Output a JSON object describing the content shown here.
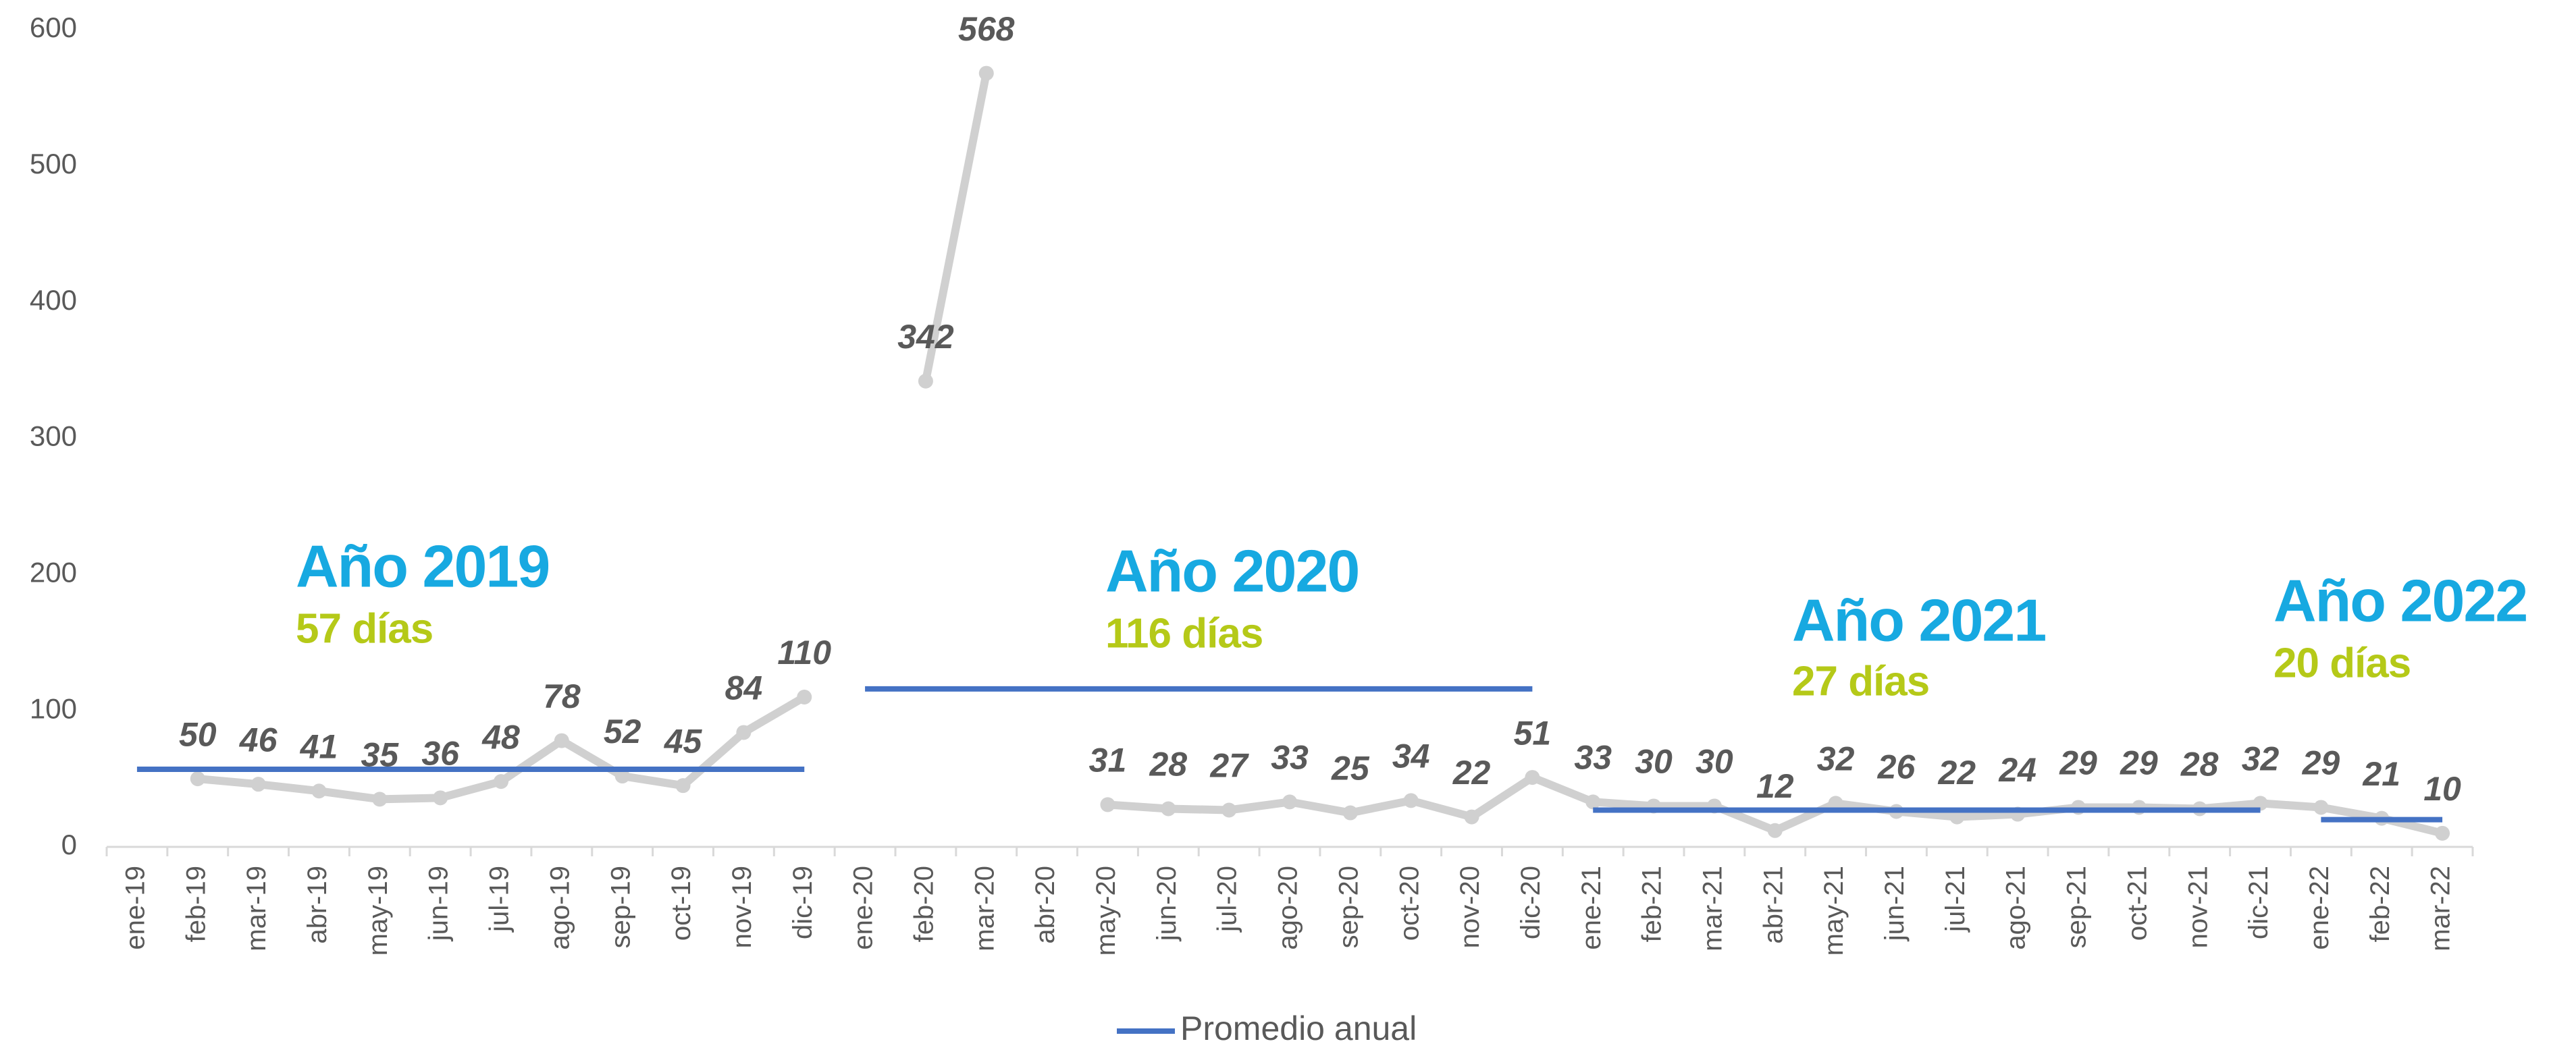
{
  "chart_data": {
    "type": "line",
    "categories": [
      "ene-19",
      "feb-19",
      "mar-19",
      "abr-19",
      "may-19",
      "jun-19",
      "jul-19",
      "ago-19",
      "sep-19",
      "oct-19",
      "nov-19",
      "dic-19",
      "ene-20",
      "feb-20",
      "mar-20",
      "abr-20",
      "may-20",
      "jun-20",
      "jul-20",
      "ago-20",
      "sep-20",
      "oct-20",
      "nov-20",
      "dic-20",
      "ene-21",
      "feb-21",
      "mar-21",
      "abr-21",
      "may-21",
      "jun-21",
      "jul-21",
      "ago-21",
      "sep-21",
      "oct-21",
      "nov-21",
      "dic-21",
      "ene-22",
      "feb-22",
      "mar-22"
    ],
    "series": [
      {
        "color": "#d0d0d0",
        "values": [
          null,
          50,
          46,
          41,
          35,
          36,
          48,
          78,
          52,
          45,
          84,
          110,
          null,
          342,
          568,
          null,
          31,
          28,
          27,
          33,
          25,
          34,
          22,
          51,
          33,
          30,
          30,
          12,
          32,
          26,
          22,
          24,
          29,
          29,
          28,
          32,
          29,
          21,
          10
        ]
      },
      {
        "name": "Promedio anual",
        "color": "#4472c4",
        "values": [
          57,
          57,
          57,
          57,
          57,
          57,
          57,
          57,
          57,
          57,
          57,
          57,
          116,
          116,
          116,
          116,
          116,
          116,
          116,
          116,
          116,
          116,
          116,
          116,
          27,
          27,
          27,
          27,
          27,
          27,
          27,
          27,
          27,
          27,
          27,
          27,
          20,
          20,
          20
        ]
      }
    ],
    "annotations": [
      {
        "title": "Año 2019",
        "text": "57 días"
      },
      {
        "title": "Año 2020",
        "text": "116 días"
      },
      {
        "title": "Año 2021",
        "text": "27 días"
      },
      {
        "title": "Año 2022",
        "text": "20 días"
      }
    ],
    "ylim": [
      0,
      600
    ],
    "yticks": [
      0,
      100,
      200,
      300,
      400,
      500,
      600
    ],
    "grid": false,
    "legend": "bottom"
  }
}
